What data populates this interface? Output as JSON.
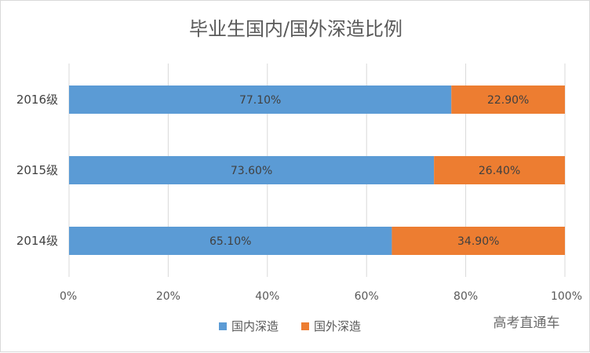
{
  "chart_data": {
    "type": "bar",
    "orientation": "horizontal",
    "stacked": true,
    "title": "毕业生国内/国外深造比例",
    "categories": [
      "2016级",
      "2015级",
      "2014级"
    ],
    "series": [
      {
        "name": "国内深造",
        "values": [
          77.1,
          73.6,
          65.1
        ],
        "labels": [
          "77.10%",
          "73.60%",
          "65.10%"
        ],
        "color": "#5b9bd5"
      },
      {
        "name": "国外深造",
        "values": [
          22.9,
          26.4,
          34.9
        ],
        "labels": [
          "22.90%",
          "26.40%",
          "34.90%"
        ],
        "color": "#ed7d31"
      }
    ],
    "x_ticks": [
      "0%",
      "20%",
      "40%",
      "60%",
      "80%",
      "100%"
    ],
    "xlim": [
      0,
      100
    ],
    "grid": true,
    "legend_position": "bottom"
  },
  "watermark": "高考直通车"
}
